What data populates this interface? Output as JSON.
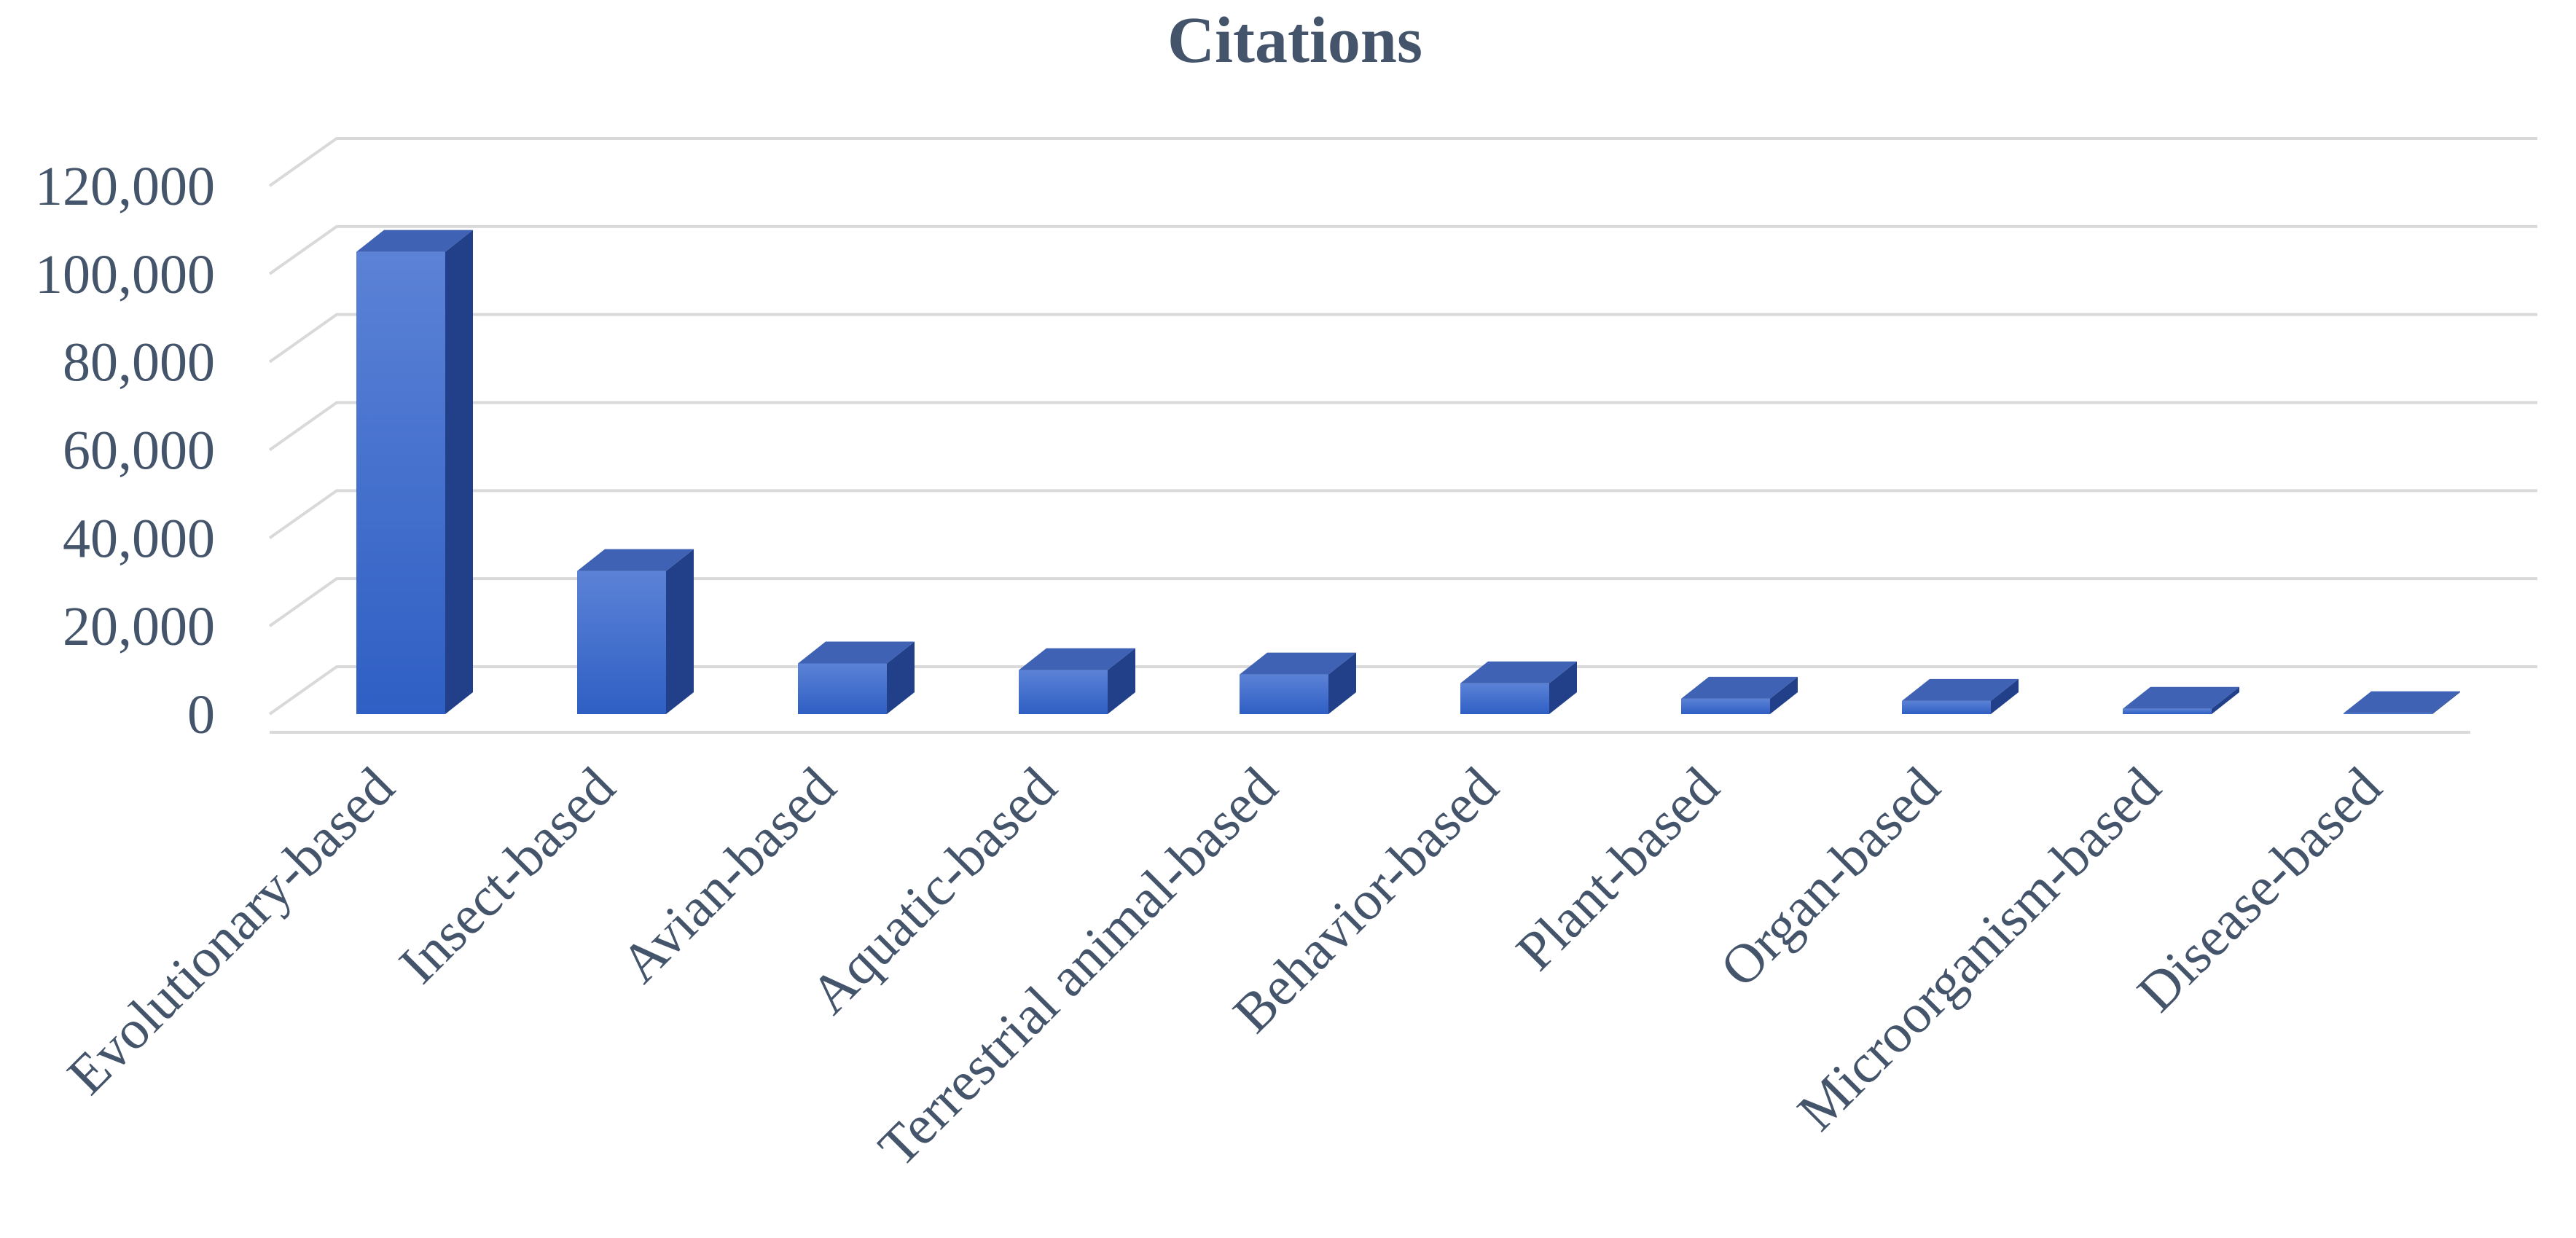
{
  "chart_data": {
    "type": "bar",
    "title": "Citations",
    "xlabel": "",
    "ylabel": "",
    "categories": [
      "Evolutionary-based",
      "Insect-based",
      "Avian-based",
      "Aquatic-based",
      "Terrestrial animal-based",
      "Behavior-based",
      "Plant-based",
      "Organ-based",
      "Microorganism-based",
      "Disease-based"
    ],
    "values": [
      105000,
      32500,
      11500,
      10000,
      9000,
      7000,
      3500,
      3000,
      1200,
      200
    ],
    "ylim": [
      0,
      120000
    ],
    "yticks": [
      "0",
      "20,000",
      "40,000",
      "60,000",
      "80,000",
      "100,000",
      "120,000"
    ],
    "grid": true,
    "legend": "none",
    "style": "3d-column",
    "colors": {
      "front_top": "#5b82d6",
      "front_bottom": "#2f5fc4",
      "side": "#22408a",
      "top": "#3f62b5",
      "text": "#44546a",
      "grid": "#d9d9d9"
    }
  }
}
